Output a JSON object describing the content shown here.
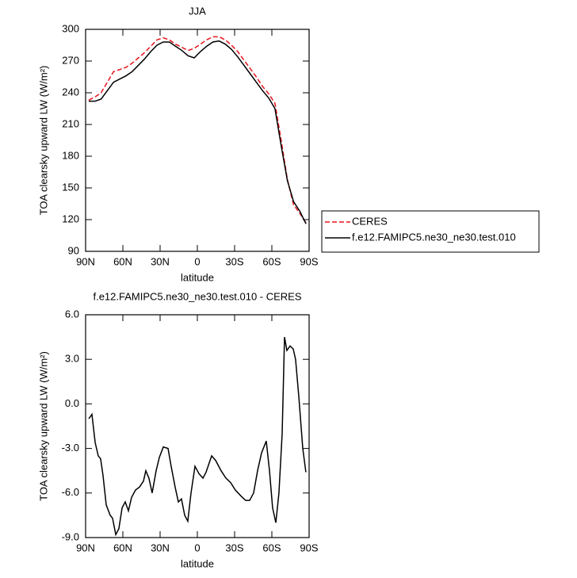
{
  "chart_data": [
    {
      "type": "line",
      "title": "JJA",
      "xlabel": "latitude",
      "ylabel": "TOA clearsky upward LW (W/m²)",
      "x": [
        87.5,
        82.5,
        77.5,
        72.5,
        67.5,
        62.5,
        57.5,
        52.5,
        47.5,
        42.5,
        37.5,
        32.5,
        27.5,
        22.5,
        17.5,
        12.5,
        7.5,
        2.5,
        -2.5,
        -7.5,
        -12.5,
        -17.5,
        -22.5,
        -27.5,
        -32.5,
        -37.5,
        -42.5,
        -47.5,
        -52.5,
        -57.5,
        -62.5,
        -67.5,
        -72.5,
        -77.5,
        -82.5,
        -87.5
      ],
      "series": [
        {
          "name": "CERES",
          "color": "#e8141b",
          "dash": "dashed",
          "values": [
            233,
            236,
            240,
            250,
            260,
            262,
            264,
            268,
            273,
            278,
            284,
            290,
            292,
            290,
            286,
            283,
            280,
            282,
            286,
            290,
            293,
            293,
            290,
            285,
            279,
            271,
            263,
            255,
            246,
            239,
            230,
            195,
            158,
            134,
            126,
            117
          ]
        },
        {
          "name": "f.e12.FAMIPC5.ne30_ne30.test.010",
          "color": "#000000",
          "dash": "solid",
          "values": [
            232,
            232,
            234,
            242,
            250,
            253,
            256,
            260,
            266,
            272,
            279,
            285,
            288,
            288,
            284,
            280,
            275,
            273,
            279,
            284,
            288,
            289,
            286,
            281,
            274,
            266,
            258,
            250,
            242,
            235,
            225,
            190,
            157,
            137,
            128,
            116
          ]
        }
      ],
      "xlim": [
        90,
        -90
      ],
      "xticks": [
        {
          "value": 90,
          "label": "90N"
        },
        {
          "value": 60,
          "label": "60N"
        },
        {
          "value": 30,
          "label": "30N"
        },
        0,
        {
          "value": -30,
          "label": "30S"
        },
        {
          "value": -60,
          "label": "60S"
        },
        {
          "value": -90,
          "label": "90S"
        }
      ],
      "ylim": [
        90,
        300
      ],
      "yticks": [
        90,
        120,
        150,
        180,
        210,
        240,
        270,
        300
      ],
      "legend": "right"
    },
    {
      "type": "line",
      "title": "f.e12.FAMIPC5.ne30_ne30.test.010 - CERES",
      "xlabel": "latitude",
      "ylabel": "TOA clearsky upward LW (W/m²)",
      "x": [
        87.4,
        84.9,
        82.3,
        79.8,
        77.9,
        76,
        73.4,
        70.2,
        68.3,
        65.7,
        63.2,
        60.6,
        58.1,
        55.5,
        53,
        49.8,
        46.6,
        43.4,
        41.5,
        39,
        36.4,
        33.2,
        30.6,
        27.4,
        23.6,
        21.1,
        17.9,
        15.3,
        12.8,
        10.2,
        7.7,
        5.1,
        1.9,
        -1.3,
        -4.5,
        -7,
        -11.5,
        -14.7,
        -19.1,
        -23,
        -26.8,
        -30.6,
        -35.1,
        -38.9,
        -42.1,
        -45.3,
        -48.5,
        -51.7,
        -55.5,
        -58.1,
        -60.6,
        -63.2,
        -65.7,
        -68.3,
        -70.2,
        -72.1,
        -74.7,
        -77.2,
        -79.1,
        -81.7,
        -84.9,
        -87.4
      ],
      "series": [
        {
          "color": "#000000",
          "dash": "solid",
          "values": [
            -1.0,
            -0.7,
            -2.6,
            -3.5,
            -3.7,
            -4.8,
            -6.8,
            -7.5,
            -7.7,
            -8.8,
            -8.4,
            -7.0,
            -6.6,
            -7.2,
            -6.3,
            -5.8,
            -5.6,
            -5.2,
            -4.5,
            -5.0,
            -6.0,
            -4.5,
            -3.6,
            -2.9,
            -3.0,
            -4.2,
            -5.6,
            -6.6,
            -6.4,
            -7.5,
            -7.9,
            -6.0,
            -4.2,
            -4.7,
            -5.0,
            -4.6,
            -3.5,
            -3.8,
            -4.5,
            -5.0,
            -5.3,
            -5.8,
            -6.2,
            -6.5,
            -6.5,
            -6.0,
            -4.5,
            -3.3,
            -2.5,
            -4.5,
            -7.0,
            -8.0,
            -6.0,
            -2.0,
            4.5,
            3.6,
            3.9,
            3.7,
            3.0,
            0.5,
            -3.0,
            -4.6
          ]
        }
      ],
      "xlim": [
        90,
        -90
      ],
      "xticks": [
        {
          "value": 90,
          "label": "90N"
        },
        {
          "value": 60,
          "label": "60N"
        },
        {
          "value": 30,
          "label": "30N"
        },
        0,
        {
          "value": -30,
          "label": "30S"
        },
        {
          "value": -60,
          "label": "60S"
        },
        {
          "value": -90,
          "label": "90S"
        }
      ],
      "ylim": [
        -9,
        6
      ],
      "yticks": [
        {
          "value": -9,
          "label": "-9.0"
        },
        {
          "value": -6,
          "label": "-6.0"
        },
        {
          "value": -3,
          "label": "-3.0"
        },
        {
          "value": 0,
          "label": "0.0"
        },
        {
          "value": 3,
          "label": "3.0"
        },
        {
          "value": 6,
          "label": "6.0"
        }
      ]
    }
  ]
}
